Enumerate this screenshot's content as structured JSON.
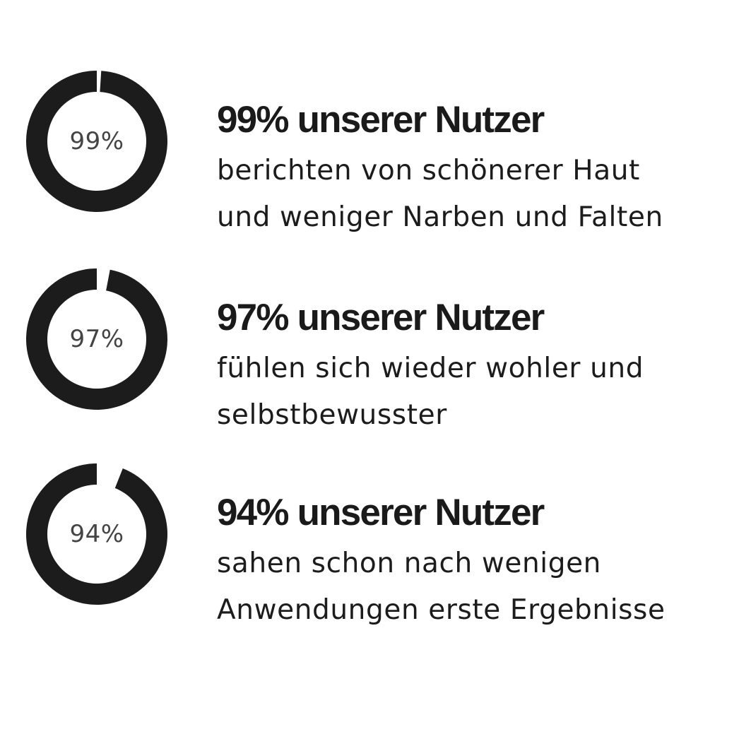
{
  "chart_data": [
    {
      "type": "pie",
      "variant": "donut",
      "values": [
        99
      ],
      "max": 100,
      "center_label": "99%",
      "title": "99% unserer Nutzer",
      "description": [
        "berichten von schönerer Haut",
        "und weniger Narben und Falten"
      ]
    },
    {
      "type": "pie",
      "variant": "donut",
      "values": [
        97
      ],
      "max": 100,
      "center_label": "97%",
      "title": "97% unserer Nutzer",
      "description": [
        "fühlen sich wieder wohler und",
        "selbstbewusster"
      ]
    },
    {
      "type": "pie",
      "variant": "donut",
      "values": [
        94
      ],
      "max": 100,
      "center_label": "94%",
      "title": "94% unserer Nutzer",
      "description": [
        "sahen schon nach wenigen",
        "Anwendungen erste Ergebnisse"
      ]
    }
  ],
  "colors": {
    "ring_fill": "#1c1c1c",
    "ring_gap": "#ffffff",
    "label_text": "#444444"
  }
}
